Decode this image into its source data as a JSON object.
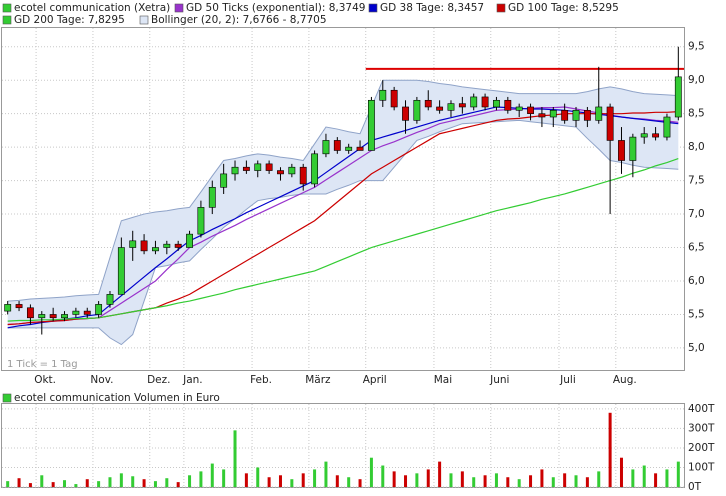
{
  "chart_data": {
    "type": "candlestick",
    "categories": [
      null,
      null,
      null,
      "Okt.",
      null,
      null,
      null,
      null,
      "Nov.",
      null,
      null,
      null,
      null,
      "Dez.",
      null,
      null,
      "Jan.",
      null,
      null,
      null,
      null,
      null,
      "Feb.",
      null,
      null,
      null,
      null,
      "März",
      null,
      null,
      null,
      null,
      "April",
      null,
      null,
      null,
      null,
      null,
      "Mai",
      null,
      null,
      null,
      null,
      "Juni",
      null,
      null,
      null,
      null,
      null,
      "Juli",
      null,
      null,
      null,
      null,
      "Aug.",
      null,
      null,
      null,
      null,
      null
    ],
    "price": {
      "name": "ecotel communication (Xetra)",
      "color": "#33cc33",
      "up_color": "#33cc33",
      "down_color": "#cc0000",
      "open": [
        5.55,
        5.65,
        5.6,
        5.45,
        5.5,
        5.45,
        5.5,
        5.55,
        5.5,
        5.65,
        5.8,
        6.5,
        6.6,
        6.45,
        6.5,
        6.55,
        6.5,
        6.7,
        7.1,
        7.4,
        7.6,
        7.7,
        7.65,
        7.75,
        7.65,
        7.6,
        7.7,
        7.45,
        7.9,
        8.1,
        7.95,
        8.0,
        7.95,
        8.7,
        8.85,
        8.6,
        8.4,
        8.7,
        8.6,
        8.55,
        8.65,
        8.6,
        8.75,
        8.6,
        8.7,
        8.55,
        8.6,
        8.5,
        8.45,
        8.55,
        8.4,
        8.55,
        8.4,
        8.6,
        8.1,
        7.8,
        8.15,
        8.2,
        8.15,
        8.45
      ],
      "high": [
        5.7,
        5.7,
        5.65,
        5.55,
        5.6,
        5.55,
        5.6,
        5.6,
        5.7,
        5.85,
        6.65,
        6.75,
        6.7,
        6.6,
        6.6,
        6.6,
        6.75,
        7.2,
        7.5,
        7.75,
        7.8,
        7.8,
        7.8,
        7.8,
        7.7,
        7.75,
        7.75,
        7.95,
        8.2,
        8.15,
        8.05,
        8.1,
        8.75,
        9.0,
        8.9,
        8.7,
        8.75,
        8.85,
        8.7,
        8.7,
        8.75,
        8.8,
        8.8,
        8.75,
        8.75,
        8.65,
        8.65,
        8.6,
        8.6,
        8.65,
        8.6,
        8.6,
        9.2,
        8.65,
        8.3,
        8.2,
        8.3,
        8.3,
        8.5,
        9.5
      ],
      "low": [
        5.5,
        5.55,
        5.35,
        5.2,
        5.4,
        5.4,
        5.45,
        5.45,
        5.45,
        5.6,
        5.8,
        6.3,
        6.4,
        6.4,
        6.4,
        6.45,
        6.5,
        6.65,
        7.0,
        7.3,
        7.5,
        7.6,
        7.55,
        7.6,
        7.5,
        7.55,
        7.35,
        7.4,
        7.85,
        7.9,
        7.9,
        7.95,
        7.95,
        8.6,
        8.55,
        8.2,
        8.35,
        8.55,
        8.5,
        8.45,
        8.5,
        8.55,
        8.55,
        8.55,
        8.5,
        8.45,
        8.4,
        8.3,
        8.3,
        8.35,
        8.3,
        8.3,
        8.35,
        7.0,
        7.6,
        7.55,
        8.05,
        8.1,
        8.1,
        8.4
      ],
      "close": [
        5.65,
        5.6,
        5.45,
        5.5,
        5.45,
        5.5,
        5.55,
        5.5,
        5.65,
        5.8,
        6.5,
        6.6,
        6.45,
        6.5,
        6.55,
        6.5,
        6.7,
        7.1,
        7.4,
        7.6,
        7.7,
        7.65,
        7.75,
        7.65,
        7.6,
        7.7,
        7.45,
        7.9,
        8.1,
        7.95,
        8.0,
        7.95,
        8.7,
        8.85,
        8.6,
        8.4,
        8.7,
        8.6,
        8.55,
        8.65,
        8.6,
        8.75,
        8.6,
        8.7,
        8.55,
        8.6,
        8.5,
        8.45,
        8.55,
        8.4,
        8.55,
        8.4,
        8.6,
        8.1,
        7.8,
        8.15,
        8.2,
        8.15,
        8.45,
        9.05
      ]
    },
    "series": [
      {
        "name": "GD 50 Ticks (exponential): 8,3749",
        "color": "#9933cc",
        "values": [
          5.35,
          5.36,
          5.38,
          5.39,
          5.4,
          5.41,
          5.43,
          5.44,
          5.45,
          5.56,
          5.67,
          5.78,
          5.89,
          6.0,
          6.17,
          6.33,
          6.5,
          6.58,
          6.67,
          6.75,
          6.83,
          6.92,
          7.0,
          7.08,
          7.16,
          7.24,
          7.32,
          7.4,
          7.51,
          7.62,
          7.73,
          7.84,
          7.95,
          8.02,
          8.08,
          8.15,
          8.22,
          8.28,
          8.35,
          8.39,
          8.43,
          8.47,
          8.51,
          8.55,
          8.56,
          8.57,
          8.58,
          8.59,
          8.59,
          8.6,
          8.57,
          8.54,
          8.51,
          8.48,
          8.45,
          8.43,
          8.42,
          8.4,
          8.39,
          8.37
        ]
      },
      {
        "name": "GD 38 Tage: 8,3457",
        "color": "#0000cc",
        "values": [
          5.3,
          5.33,
          5.35,
          5.38,
          5.4,
          5.43,
          5.45,
          5.48,
          5.5,
          5.64,
          5.78,
          5.92,
          6.06,
          6.2,
          6.33,
          6.47,
          6.6,
          6.68,
          6.77,
          6.85,
          6.93,
          7.02,
          7.1,
          7.18,
          7.26,
          7.34,
          7.42,
          7.5,
          7.62,
          7.74,
          7.86,
          7.98,
          8.1,
          8.15,
          8.2,
          8.25,
          8.3,
          8.35,
          8.4,
          8.44,
          8.48,
          8.52,
          8.56,
          8.6,
          8.59,
          8.58,
          8.57,
          8.57,
          8.56,
          8.55,
          8.53,
          8.51,
          8.49,
          8.47,
          8.45,
          8.43,
          8.41,
          8.39,
          8.37,
          8.35
        ]
      },
      {
        "name": "GD 100 Tage: 8,5295",
        "color": "#cc0000",
        "values": [
          5.35,
          5.36,
          5.38,
          5.39,
          5.4,
          5.41,
          5.43,
          5.44,
          5.45,
          5.48,
          5.51,
          5.54,
          5.57,
          5.6,
          5.67,
          5.73,
          5.8,
          5.9,
          6.0,
          6.1,
          6.2,
          6.3,
          6.4,
          6.5,
          6.6,
          6.7,
          6.8,
          6.9,
          7.04,
          7.18,
          7.32,
          7.46,
          7.6,
          7.7,
          7.8,
          7.9,
          8.0,
          8.1,
          8.2,
          8.24,
          8.28,
          8.32,
          8.36,
          8.4,
          8.42,
          8.43,
          8.45,
          8.47,
          8.48,
          8.5,
          8.5,
          8.5,
          8.5,
          8.5,
          8.5,
          8.51,
          8.51,
          8.52,
          8.52,
          8.53
        ]
      },
      {
        "name": "GD 200 Tage: 7,8295",
        "color": "#33cc33",
        "values": [
          5.4,
          5.41,
          5.41,
          5.42,
          5.42,
          5.43,
          5.44,
          5.44,
          5.45,
          5.48,
          5.51,
          5.54,
          5.57,
          5.6,
          5.63,
          5.67,
          5.7,
          5.74,
          5.78,
          5.82,
          5.87,
          5.91,
          5.95,
          5.99,
          6.03,
          6.07,
          6.11,
          6.15,
          6.22,
          6.29,
          6.36,
          6.43,
          6.5,
          6.55,
          6.6,
          6.65,
          6.7,
          6.75,
          6.8,
          6.85,
          6.9,
          6.95,
          7.0,
          7.05,
          7.09,
          7.13,
          7.17,
          7.22,
          7.26,
          7.3,
          7.35,
          7.4,
          7.45,
          7.5,
          7.55,
          7.61,
          7.66,
          7.72,
          7.77,
          7.83
        ]
      }
    ],
    "bollinger": {
      "name": "Bollinger (20, 2): 7,6766 - 8,7705",
      "color": "#8fa3c8",
      "fill": "#dde6f5",
      "upper": [
        5.7,
        5.71,
        5.73,
        5.74,
        5.75,
        5.76,
        5.78,
        5.79,
        5.8,
        6.35,
        6.9,
        6.95,
        7.0,
        7.03,
        7.05,
        7.08,
        7.1,
        7.33,
        7.57,
        7.8,
        7.83,
        7.87,
        7.9,
        7.88,
        7.85,
        7.83,
        7.8,
        8.05,
        8.3,
        8.27,
        8.23,
        8.2,
        8.6,
        9.0,
        9.0,
        9.0,
        9.0,
        8.98,
        8.95,
        8.93,
        8.9,
        8.88,
        8.86,
        8.84,
        8.82,
        8.8,
        8.8,
        8.8,
        8.8,
        8.8,
        8.8,
        8.83,
        8.87,
        8.9,
        8.87,
        8.83,
        8.8,
        8.79,
        8.78,
        8.77
      ],
      "lower": [
        5.3,
        5.3,
        5.3,
        5.3,
        5.3,
        5.3,
        5.3,
        5.3,
        5.3,
        5.15,
        5.05,
        5.2,
        5.7,
        6.2,
        6.23,
        6.27,
        6.3,
        6.47,
        6.63,
        6.8,
        6.93,
        7.07,
        7.2,
        7.23,
        7.25,
        7.28,
        7.3,
        7.3,
        7.3,
        7.37,
        7.43,
        7.5,
        7.5,
        7.5,
        7.7,
        7.9,
        8.1,
        8.16,
        8.23,
        8.29,
        8.35,
        8.36,
        8.37,
        8.38,
        8.39,
        8.4,
        8.38,
        8.36,
        8.34,
        8.32,
        8.3,
        8.13,
        7.97,
        7.8,
        7.77,
        7.73,
        7.7,
        7.69,
        7.68,
        7.67
      ]
    },
    "resistance": {
      "value": 9.17,
      "from": "April",
      "color": "#dd0000"
    },
    "ylim": [
      4.67,
      9.78
    ],
    "yticks": [
      {
        "value": 5.0,
        "label": "5,0"
      },
      {
        "value": 5.5,
        "label": "5,5"
      },
      {
        "value": 6.0,
        "label": "6,0"
      },
      {
        "value": 6.5,
        "label": "6,5"
      },
      {
        "value": 7.0,
        "label": "7,0"
      },
      {
        "value": 7.5,
        "label": "7,5"
      },
      {
        "value": 8.0,
        "label": "8,0"
      },
      {
        "value": 8.5,
        "label": "8,5"
      },
      {
        "value": 9.0,
        "label": "9,0"
      },
      {
        "value": 9.5,
        "label": "9,5"
      }
    ],
    "grid": true,
    "annotation": "1 Tick = 1 Tag",
    "volume": {
      "name": "ecotel communication Volumen in Euro",
      "color": "#33cc33",
      "values": [
        30,
        45,
        20,
        60,
        25,
        35,
        15,
        40,
        30,
        50,
        70,
        55,
        40,
        30,
        45,
        25,
        60,
        80,
        120,
        90,
        290,
        70,
        100,
        50,
        60,
        40,
        70,
        90,
        130,
        60,
        50,
        40,
        150,
        110,
        80,
        60,
        70,
        90,
        130,
        70,
        80,
        50,
        60,
        70,
        50,
        40,
        60,
        90,
        50,
        70,
        60,
        50,
        80,
        380,
        150,
        90,
        110,
        70,
        90,
        130
      ],
      "ylim": [
        0,
        425
      ],
      "yticks": [
        {
          "value": 0,
          "label": "0T"
        },
        {
          "value": 100,
          "label": "100T"
        },
        {
          "value": 200,
          "label": "200T"
        },
        {
          "value": 300,
          "label": "300T"
        },
        {
          "value": 400,
          "label": "400T"
        }
      ]
    }
  }
}
